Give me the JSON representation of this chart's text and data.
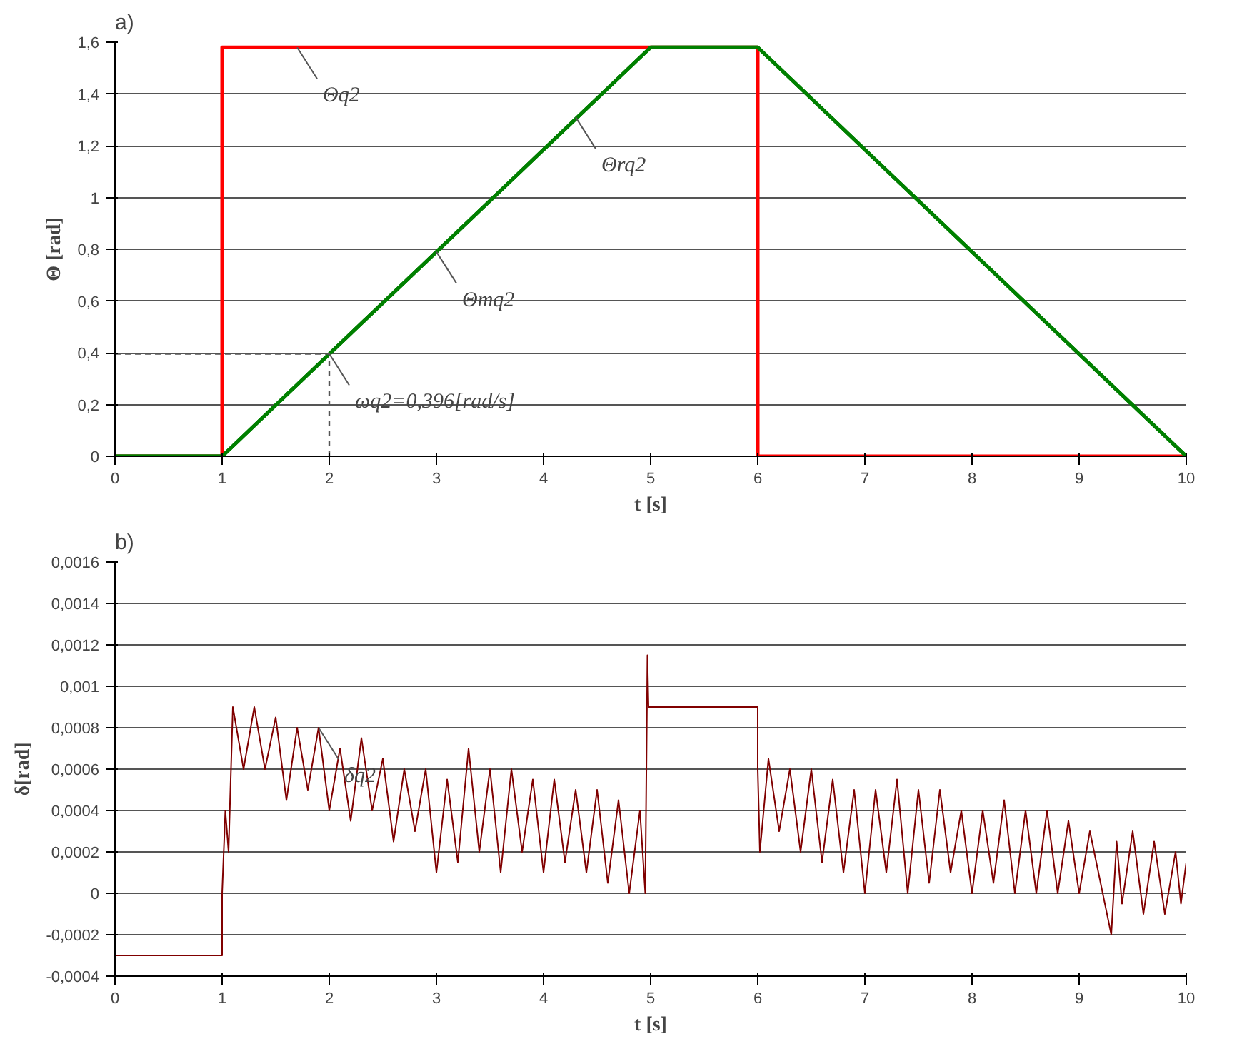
{
  "chart_data": [
    {
      "type": "line",
      "title": "a)",
      "xlabel": "t [s]",
      "ylabel": "Θ [rad]",
      "xlim": [
        0,
        10
      ],
      "xticks": [
        0,
        1,
        2,
        3,
        4,
        5,
        6,
        7,
        8,
        9,
        10
      ],
      "ylim": [
        0,
        1.6
      ],
      "yticks": [
        0,
        {
          "value": 0.2,
          "label": "0,2"
        },
        {
          "value": 0.4,
          "label": "0,4"
        },
        {
          "value": 0.6,
          "label": "0,6"
        },
        {
          "value": 0.8,
          "label": "0,8"
        },
        1,
        {
          "value": 1.2,
          "label": "1,2"
        },
        {
          "value": 1.4,
          "label": "1,4"
        },
        {
          "value": 1.6,
          "label": "1,6"
        }
      ],
      "grid": "y",
      "series": [
        {
          "color": "#ff0000",
          "x": [
            0,
            1,
            1,
            6,
            6,
            10
          ],
          "values": [
            0,
            0,
            1.58,
            1.58,
            0,
            0
          ]
        },
        {
          "color": "#008000",
          "x": [
            0,
            1,
            5,
            6,
            10
          ],
          "values": [
            0,
            0,
            1.58,
            1.58,
            0
          ]
        },
        {
          "color": "#008000",
          "x": [
            0,
            1,
            5,
            6,
            10
          ],
          "values": [
            0,
            0,
            1.58,
            1.58,
            0
          ]
        }
      ],
      "ref_lines": [
        {
          "axis": "x",
          "value": 2,
          "line_style": "dashed",
          "color": "#555555"
        },
        {
          "axis": "y",
          "value": 0.396,
          "line_style": "dashed",
          "color": "#555555"
        }
      ],
      "annotations": [
        {
          "text": "Θq2",
          "x": 1.7,
          "y": 1.58
        },
        {
          "text": "ωq2=0,396[rad/s]",
          "x": 2,
          "y": 0.396
        },
        {
          "text": "Θmq2",
          "x": 3.0,
          "y": 0.79
        },
        {
          "text": "Θrq2",
          "x": 4.3,
          "y": 1.31
        }
      ]
    },
    {
      "type": "line",
      "title": "b)",
      "xlabel": "t [s]",
      "ylabel": "δ[rad]",
      "xlim": [
        0,
        10
      ],
      "xticks": [
        0,
        1,
        2,
        3,
        4,
        5,
        6,
        7,
        8,
        9,
        10
      ],
      "ylim": [
        -0.0004,
        0.0016
      ],
      "yticks": [
        {
          "value": -0.0004,
          "label": "-0,0004"
        },
        {
          "value": -0.0002,
          "label": "-0,0002"
        },
        {
          "value": 0,
          "label": "0"
        },
        {
          "value": 0.0002,
          "label": "0,0002"
        },
        {
          "value": 0.0004,
          "label": "0,0004"
        },
        {
          "value": 0.0006,
          "label": "0,0006"
        },
        {
          "value": 0.0008,
          "label": "0,0008"
        },
        {
          "value": 0.001,
          "label": "0,001"
        },
        {
          "value": 0.0012,
          "label": "0,0012"
        },
        {
          "value": 0.0014,
          "label": "0,0014"
        },
        {
          "value": 0.0016,
          "label": "0,0016"
        }
      ],
      "grid": "y",
      "series": [
        {
          "color": "#800000",
          "x": [
            0,
            1,
            1,
            1.03,
            1.06,
            1.1,
            1.2,
            1.3,
            1.4,
            1.5,
            1.6,
            1.7,
            1.8,
            1.9,
            2.0,
            2.1,
            2.2,
            2.3,
            2.4,
            2.5,
            2.6,
            2.7,
            2.8,
            2.9,
            3.0,
            3.1,
            3.2,
            3.3,
            3.4,
            3.5,
            3.6,
            3.7,
            3.8,
            3.9,
            4.0,
            4.1,
            4.2,
            4.3,
            4.4,
            4.5,
            4.6,
            4.7,
            4.8,
            4.9,
            4.95,
            4.97,
            4.98,
            6.0,
            6.0,
            6.02,
            6.1,
            6.2,
            6.3,
            6.4,
            6.5,
            6.6,
            6.7,
            6.8,
            6.9,
            7.0,
            7.1,
            7.2,
            7.3,
            7.4,
            7.5,
            7.6,
            7.7,
            7.8,
            7.9,
            8.0,
            8.1,
            8.2,
            8.3,
            8.4,
            8.5,
            8.6,
            8.7,
            8.8,
            8.9,
            9.0,
            9.1,
            9.3,
            9.35,
            9.4,
            9.5,
            9.6,
            9.7,
            9.8,
            9.9,
            9.95,
            10,
            10
          ],
          "values": [
            -0.0003,
            -0.0003,
            0,
            0.0004,
            0.0002,
            0.0009,
            0.0006,
            0.0009,
            0.0006,
            0.00085,
            0.00045,
            0.0008,
            0.0005,
            0.0008,
            0.0004,
            0.0007,
            0.00035,
            0.00075,
            0.0004,
            0.00065,
            0.00025,
            0.0006,
            0.0003,
            0.0006,
            0.0001,
            0.00055,
            0.00015,
            0.0007,
            0.0002,
            0.0006,
            0.0001,
            0.0006,
            0.0002,
            0.00055,
            0.0001,
            0.00055,
            0.00015,
            0.0005,
            0.0001,
            0.0005,
            5e-05,
            0.00045,
            0,
            0.0004,
            0,
            0.00115,
            0.0009,
            0.0009,
            0.0006,
            0.0002,
            0.00065,
            0.0003,
            0.0006,
            0.0002,
            0.0006,
            0.00015,
            0.00055,
            0.0001,
            0.0005,
            0,
            0.0005,
            0.0001,
            0.00055,
            0,
            0.0005,
            5e-05,
            0.0005,
            0.0001,
            0.0004,
            0,
            0.0004,
            5e-05,
            0.00045,
            0,
            0.0004,
            0,
            0.0004,
            0,
            0.00035,
            0,
            0.0003,
            -0.0002,
            0.00025,
            -5e-05,
            0.0003,
            -0.0001,
            0.00025,
            -0.0001,
            0.0002,
            -5e-05,
            0.00015,
            -0.0004
          ]
        }
      ],
      "annotations": [
        {
          "text": "δq2",
          "x": 1.9,
          "y": 0.0008
        }
      ]
    }
  ]
}
